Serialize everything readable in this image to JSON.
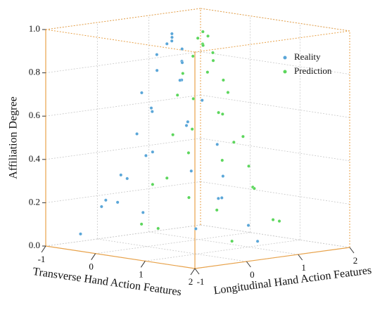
{
  "chart_data": {
    "type": "scatter3d",
    "xlabel": "Transverse Hand Action Features",
    "ylabel": "Longitudinal Hand Action Features",
    "zlabel": "Affiliation Degree",
    "xlim": [
      -1,
      2
    ],
    "xticks": [
      -1,
      0,
      1,
      2
    ],
    "ylim": [
      -1,
      2
    ],
    "yticks": [
      -1,
      0,
      1,
      2
    ],
    "zlim": [
      0,
      1
    ],
    "zticks": [
      {
        "value": 0,
        "label": "0.0"
      },
      0.2,
      0.4,
      0.6,
      0.8,
      {
        "value": 1,
        "label": "1.0"
      }
    ],
    "grid": true,
    "legend": "upper right",
    "series": [
      {
        "name": "Reality",
        "color": "#5aa6d8",
        "x": [
          0.5,
          0.45,
          0.55,
          0.4,
          0.6,
          0.3,
          0.7,
          0.5,
          0.2,
          0.8,
          0.35,
          0.1,
          0.9,
          0.5,
          0,
          1.0,
          0.3,
          -0.1,
          1.1,
          0.6,
          -0.2,
          1.2,
          0.2,
          0.8,
          -0.4,
          1.4,
          0,
          0.5,
          -0.5,
          1.5,
          -0.6,
          1.0,
          -0.3,
          1.6,
          -0.8
        ],
        "y": [
          0,
          0.05,
          -0.05,
          0,
          0.1,
          -0.1,
          0,
          0.2,
          0,
          -0.1,
          0.3,
          -0.2,
          0.2,
          -0.4,
          0.1,
          -0.2,
          0.5,
          -0.1,
          0.3,
          -0.6,
          0.3,
          -0.3,
          -0.7,
          0.7,
          0,
          0.1,
          -0.8,
          0.9,
          -0.4,
          -0.5,
          0.5,
          1.0,
          -1.0,
          0.6,
          0.2
        ],
        "z": [
          1.0,
          0.98,
          0.97,
          0.95,
          0.93,
          0.9,
          0.88,
          0.86,
          0.82,
          0.8,
          0.77,
          0.72,
          0.7,
          0.67,
          0.62,
          0.6,
          0.57,
          0.52,
          0.5,
          0.46,
          0.42,
          0.4,
          0.36,
          0.33,
          0.3,
          0.27,
          0.24,
          0.21,
          0.18,
          0.15,
          0.12,
          0.1,
          0.08,
          0.06,
          0.17
        ]
      },
      {
        "name": "Prediction",
        "color": "#5cd65c",
        "x": [
          0.5,
          0.55,
          0.45,
          0.6,
          0.4,
          0.7,
          0.3,
          0.5,
          0.8,
          0.2,
          0.6,
          0.9,
          0.3,
          0.1,
          1.0,
          0.4,
          0.7,
          1.1,
          0,
          0.5,
          1.2,
          -0.1,
          0.8,
          0.4,
          1.4,
          -0.2,
          0.6,
          1.3,
          -0.3,
          1.6,
          0.2,
          1.0,
          1.5,
          -0.4
        ],
        "y": [
          0.6,
          0.65,
          0.55,
          0.5,
          0.7,
          0.6,
          0.6,
          0.8,
          0.4,
          0.5,
          0.9,
          0.7,
          0.3,
          0.8,
          0.5,
          1.0,
          0.2,
          0.8,
          0.5,
          1.2,
          0.3,
          0.9,
          1.2,
          0,
          0.7,
          0.3,
          1.5,
          0.1,
          1.1,
          0.9,
          -0.3,
          1.6,
          0.2,
          0.6
        ],
        "z": [
          0.99,
          0.97,
          0.96,
          0.94,
          0.92,
          0.9,
          0.87,
          0.85,
          0.82,
          0.79,
          0.76,
          0.72,
          0.7,
          0.66,
          0.63,
          0.6,
          0.56,
          0.52,
          0.5,
          0.46,
          0.43,
          0.4,
          0.36,
          0.33,
          0.3,
          0.27,
          0.24,
          0.21,
          0.18,
          0.15,
          0.12,
          0.1,
          0.07,
          0.05
        ]
      }
    ]
  }
}
